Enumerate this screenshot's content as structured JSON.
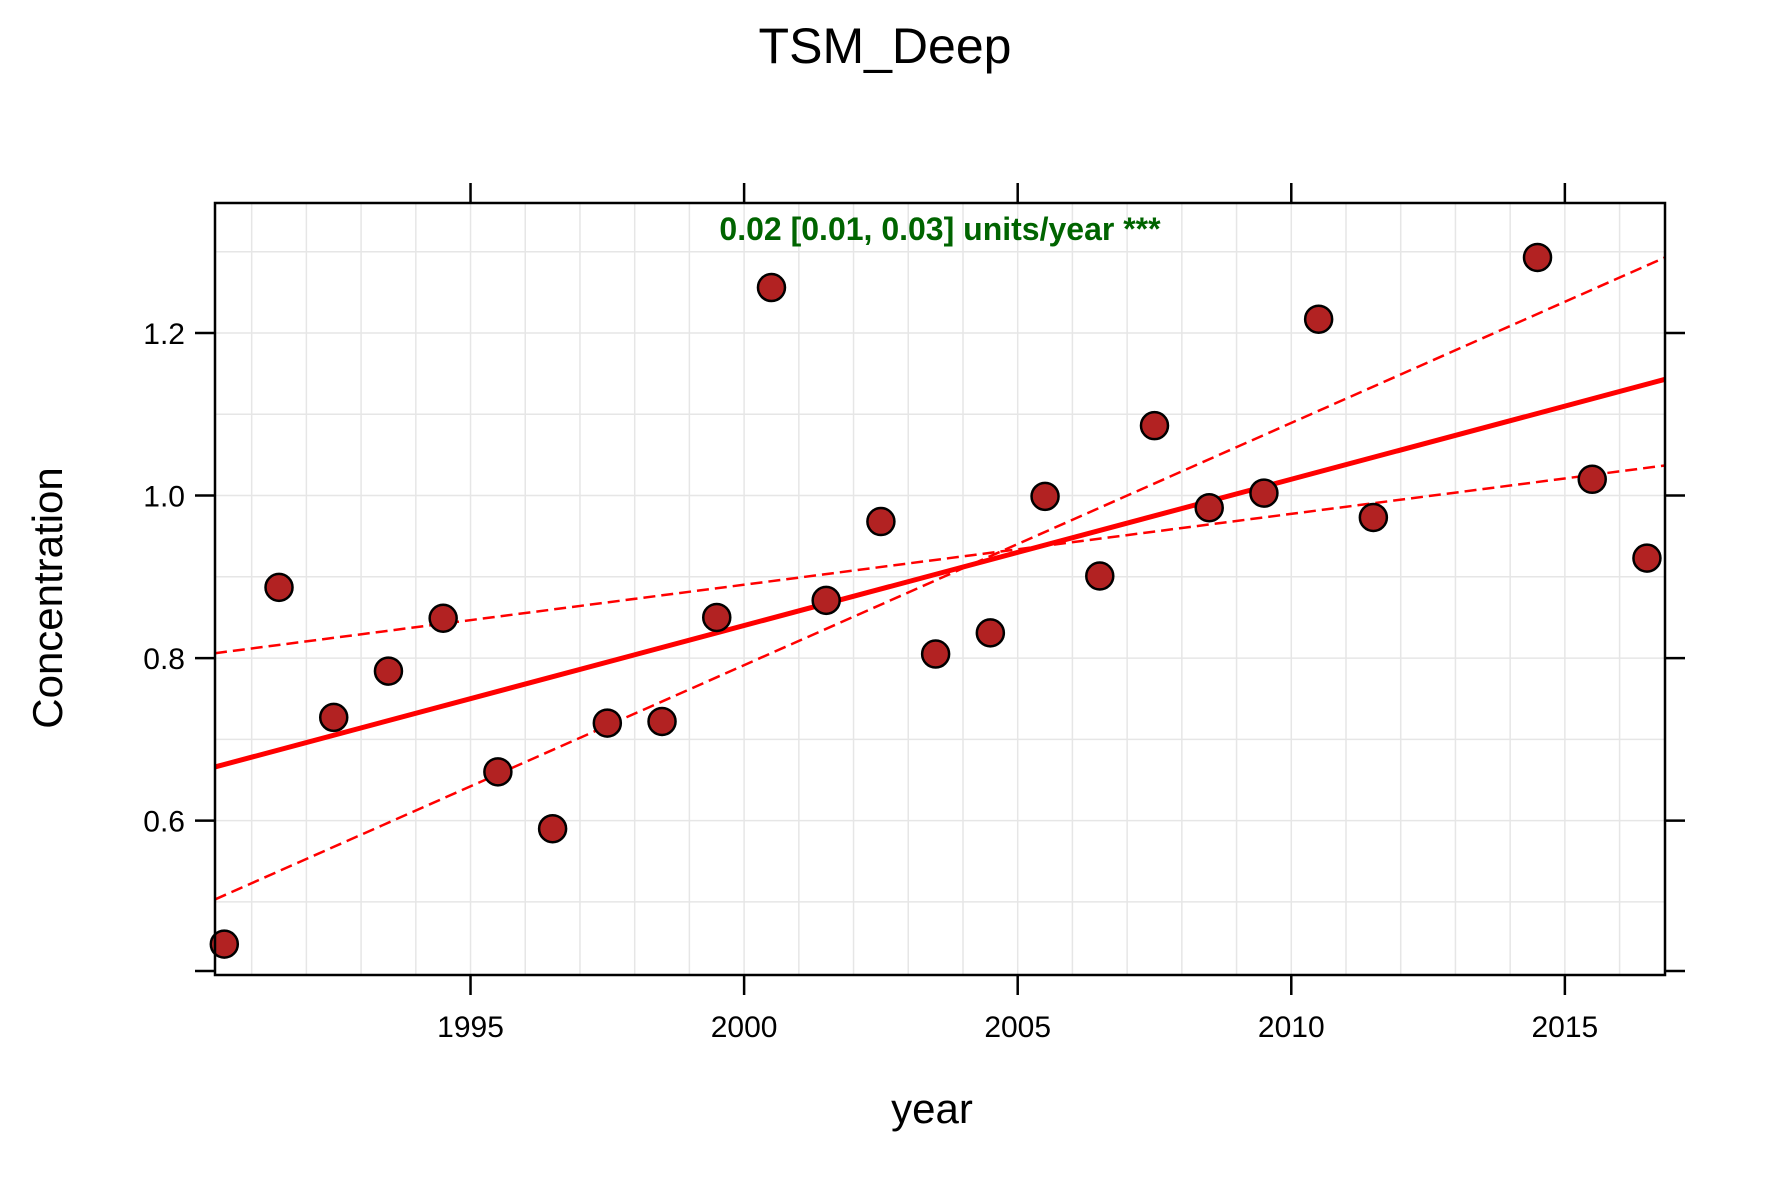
{
  "chart_data": {
    "type": "scatter",
    "title": "TSM_Deep",
    "xlabel": "year",
    "ylabel": "Concentration",
    "xlim": [
      1990.33,
      2016.83
    ],
    "ylim": [
      0.41,
      1.36
    ],
    "x_ticks": [
      1995,
      2000,
      2005,
      2010,
      2015
    ],
    "x_tick_labels": [
      "1995",
      "2000",
      "2005",
      "2010",
      "2015"
    ],
    "y_ticks": [
      0.6,
      0.8,
      1.0,
      1.2
    ],
    "y_tick_labels": [
      "0.6",
      "0.8",
      "1.0",
      "1.2"
    ],
    "grid": true,
    "annotation": "0.02 [0.01, 0.03] units/year ***",
    "colors": {
      "points_fill": "#b22222",
      "points_stroke": "#000000",
      "trend": "#ff0000",
      "annotation": "#006400",
      "grid": "#e6e6e6"
    },
    "points": {
      "x": [
        1990.5,
        1991.5,
        1992.5,
        1993.5,
        1994.5,
        1995.5,
        1996.5,
        1997.5,
        1998.5,
        1999.5,
        2000.5,
        2001.5,
        2002.5,
        2003.5,
        2004.5,
        2005.5,
        2006.5,
        2007.5,
        2008.5,
        2009.5,
        2010.5,
        2011.5,
        2014.5,
        2015.5,
        2016.5
      ],
      "y": [
        0.448,
        0.887,
        0.727,
        0.784,
        0.849,
        0.66,
        0.59,
        0.72,
        0.722,
        0.85,
        1.256,
        0.871,
        0.968,
        0.805,
        0.831,
        0.999,
        0.901,
        1.086,
        0.985,
        1.003,
        1.217,
        0.973,
        1.293,
        1.02,
        0.923
      ]
    },
    "trend_line": {
      "x": [
        1990.33,
        2016.83
      ],
      "y": [
        0.666,
        1.143
      ]
    },
    "ci_lower": {
      "x": [
        1990.33,
        2016.83
      ],
      "y": [
        0.806,
        1.037
      ]
    },
    "ci_upper": {
      "x": [
        1990.33,
        2016.83
      ],
      "y": [
        0.503,
        1.293
      ]
    }
  }
}
